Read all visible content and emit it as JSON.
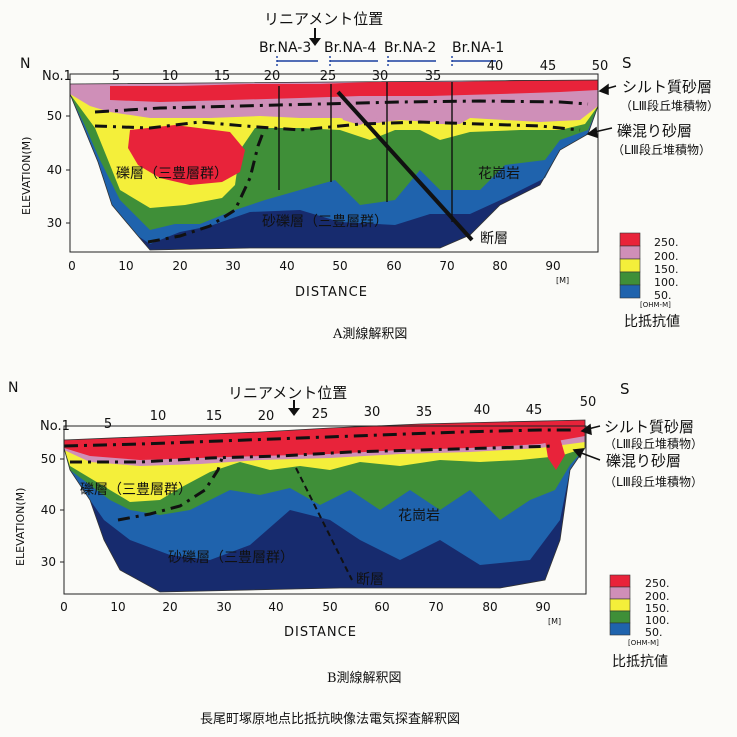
{
  "page": {
    "title": "長尾町塚原地点比抵抗映像法電気探査解釈図"
  },
  "colors": {
    "r250": "#e8233a",
    "r200": "#cf8fb8",
    "r150": "#f4ef3a",
    "r100": "#3f8f38",
    "r50": "#1f63ad",
    "r0": "#172b6e"
  },
  "panel_a": {
    "caption": "A測線解釈図",
    "n_label": "N",
    "s_label": "S",
    "no1_label": "No.1",
    "station_ticks": [
      "5",
      "10",
      "15",
      "20",
      "25",
      "30",
      "35",
      "40",
      "45",
      "50"
    ],
    "elevation_label": "ELEVATION(M)",
    "y_ticks": [
      "50",
      "40",
      "30"
    ],
    "x_ticks": [
      "0",
      "10",
      "20",
      "30",
      "40",
      "50",
      "60",
      "70",
      "80",
      "90"
    ],
    "x_unit": "[M]",
    "distance_label": "DISTANCE",
    "lineament_label": "リニアメント位置",
    "boreholes": [
      "Br.NA-3",
      "Br.NA-4",
      "Br.NA-2",
      "Br.NA-1"
    ],
    "labels": {
      "silt": "シルト質砂層",
      "silt_sub": "（LⅢ段丘堆積物）",
      "gravel_sand": "礫混り砂層",
      "gravel_sand_sub": "（LⅢ段丘堆積物）",
      "gravel": "礫層（三豊層群）",
      "sandy_gravel": "砂礫層（三豊層群）",
      "granite": "花崗岩",
      "fault": "断層"
    },
    "legend": {
      "values": [
        "250.",
        "200.",
        "150.",
        "100.",
        "50."
      ],
      "unit": "[OHM-M]",
      "title": "比抵抗値"
    }
  },
  "panel_b": {
    "caption": "B測線解釈図",
    "n_label": "N",
    "s_label": "S",
    "no1_label": "No.1",
    "station_ticks": [
      "5",
      "10",
      "15",
      "20",
      "25",
      "30",
      "35",
      "40",
      "45",
      "50"
    ],
    "elevation_label": "ELEVATION(M)",
    "y_ticks": [
      "50",
      "40",
      "30"
    ],
    "x_ticks": [
      "0",
      "10",
      "20",
      "30",
      "40",
      "50",
      "60",
      "70",
      "80",
      "90"
    ],
    "x_unit": "[M]",
    "distance_label": "DISTANCE",
    "lineament_label": "リニアメント位置",
    "labels": {
      "silt": "シルト質砂層",
      "silt_sub": "（LⅢ段丘堆積物）",
      "gravel_sand": "礫混り砂層",
      "gravel_sand_sub": "（LⅢ段丘堆積物）",
      "gravel": "礫層（三豊層群）",
      "sandy_gravel": "砂礫層（三豊層群）",
      "granite": "花崗岩",
      "fault": "断層"
    },
    "legend": {
      "values": [
        "250.",
        "200.",
        "150.",
        "100.",
        "50."
      ],
      "unit": "[OHM-M]",
      "title": "比抵抗値"
    }
  }
}
